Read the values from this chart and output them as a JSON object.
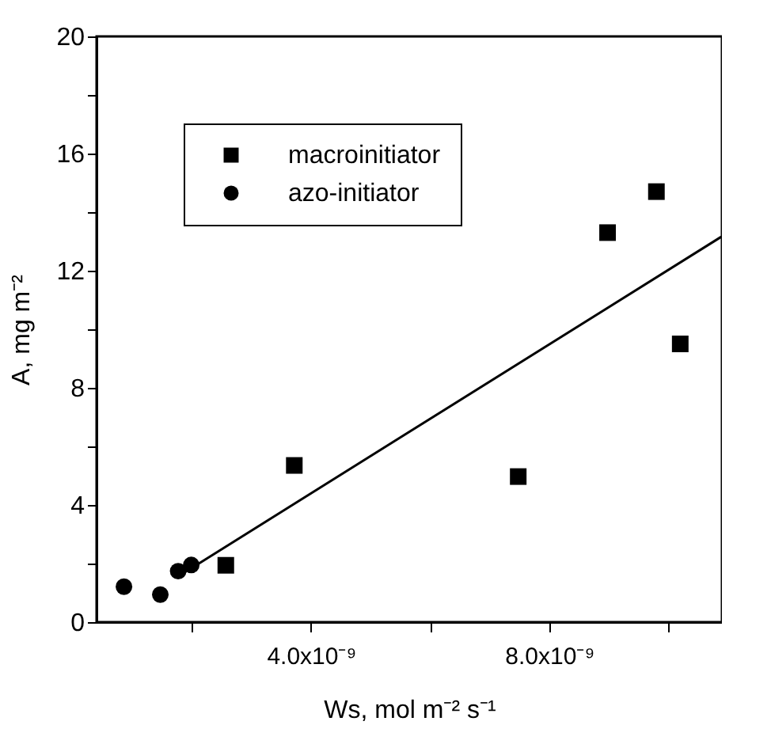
{
  "chart_data": {
    "type": "scatter",
    "xlabel": "Ws, mol m⁻² s⁻¹",
    "ylabel": "A, mg m⁻²",
    "xlim": [
      4e-10,
      1.09e-08
    ],
    "ylim": [
      0,
      20
    ],
    "xticks": [
      {
        "value": 2e-09,
        "label": null
      },
      {
        "value": 4e-09,
        "label": "4.0x10⁻⁹"
      },
      {
        "value": 6e-09,
        "label": null
      },
      {
        "value": 8e-09,
        "label": "8.0x10⁻⁹"
      },
      {
        "value": 1e-08,
        "label": null
      }
    ],
    "yticks": [
      0,
      {
        "value": 2,
        "label": null
      },
      4,
      {
        "value": 6,
        "label": null
      },
      8,
      {
        "value": 10,
        "label": null
      },
      12,
      {
        "value": 14,
        "label": null
      },
      16,
      {
        "value": 18,
        "label": null
      },
      20
    ],
    "legend": "top left",
    "grid": false,
    "series": [
      {
        "name": "macroinitiator",
        "color": "#000000",
        "marker": "square",
        "x": [
          2.57e-09,
          3.72e-09,
          7.48e-09,
          8.98e-09,
          9.8e-09,
          1.02e-08
        ],
        "values": [
          1.94,
          5.35,
          4.97,
          13.3,
          14.7,
          9.5
        ]
      },
      {
        "name": "azo-initiator",
        "color": "#000000",
        "marker": "circle",
        "x": [
          8.6e-10,
          1.47e-09,
          1.77e-09,
          1.99e-09
        ],
        "values": [
          1.21,
          0.94,
          1.74,
          1.95
        ]
      },
      {
        "type": "line",
        "color": "#000000",
        "line_style": "solid",
        "x": [
          1.77e-09,
          1.089e-08
        ],
        "values": [
          1.56,
          13.16
        ]
      }
    ]
  }
}
